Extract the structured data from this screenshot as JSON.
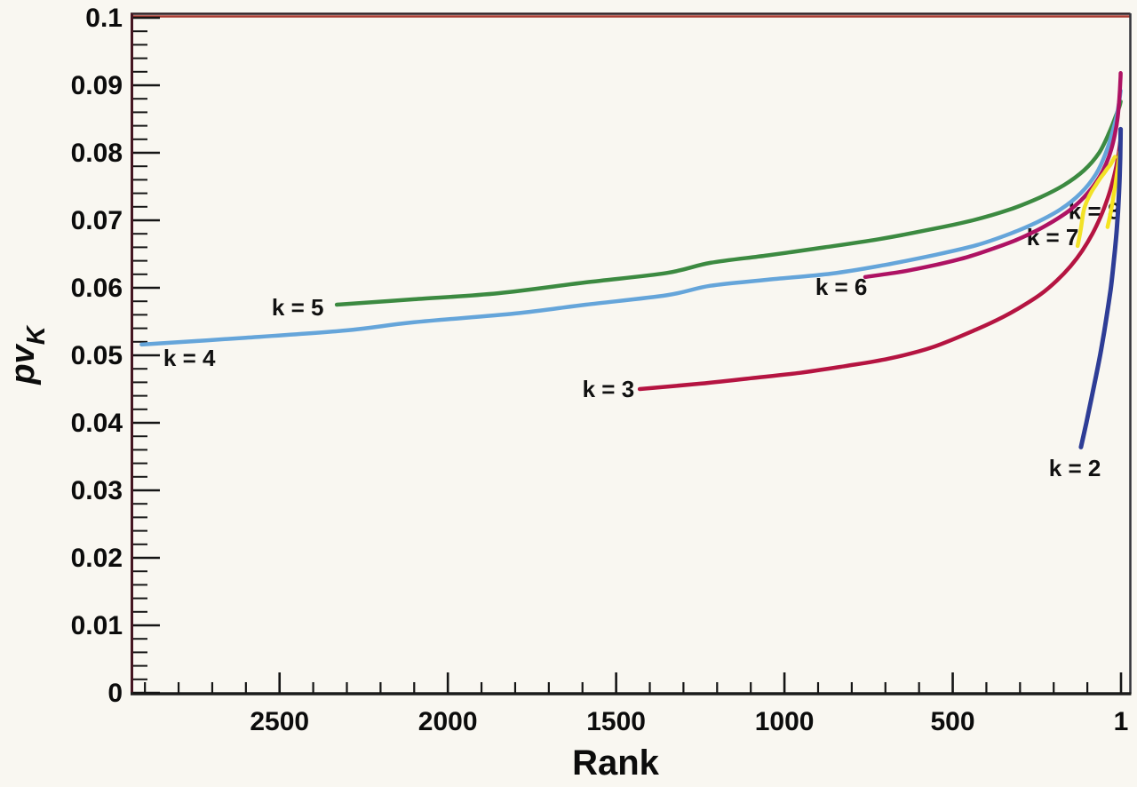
{
  "figure": {
    "background_color": "#f9f7f1",
    "frame": {
      "top_line_color": "#a83a31",
      "top_edge_color": "#2f1f24",
      "left_axis_color": "#451521",
      "right_border_color": "#33333a",
      "bottom_axis_color": "#1b1b1b",
      "tick_color": "#151515"
    }
  },
  "chart_data": {
    "type": "line",
    "title": "",
    "xlabel": "Rank",
    "ylabel": "pv_K",
    "ylabel_main": "pv",
    "ylabel_sub": "K",
    "grid": false,
    "legend": "inline curve labels",
    "x_axis": {
      "label": "Rank",
      "min": 0,
      "max": 2940,
      "direction": "reversed (high rank at left, 1 at right)",
      "major_ticks": [
        2500,
        2000,
        1500,
        1000,
        500,
        0
      ],
      "major_tick_labels": [
        "2500",
        "2000",
        "1500",
        "1000",
        "500",
        "1"
      ],
      "minor_tick_step": 100
    },
    "y_axis": {
      "label": "pv_K",
      "min": 0,
      "max": 0.1,
      "major_tick_step": 0.01,
      "minor_tick_step": 0.002,
      "major_tick_labels": [
        "0",
        "0.01",
        "0.02",
        "0.03",
        "0.04",
        "0.05",
        "0.06",
        "0.07",
        "0.08",
        "0.09",
        "0.1"
      ]
    },
    "series": [
      {
        "name": "k = 5",
        "color": "#3c8a41",
        "points": [
          [
            2330,
            0.0575
          ],
          [
            2100,
            0.0583
          ],
          [
            1850,
            0.0592
          ],
          [
            1590,
            0.0608
          ],
          [
            1350,
            0.0622
          ],
          [
            1220,
            0.0637
          ],
          [
            1050,
            0.0648
          ],
          [
            880,
            0.066
          ],
          [
            720,
            0.0672
          ],
          [
            570,
            0.0686
          ],
          [
            440,
            0.07
          ],
          [
            330,
            0.0716
          ],
          [
            240,
            0.0734
          ],
          [
            170,
            0.0752
          ],
          [
            110,
            0.0774
          ],
          [
            65,
            0.08
          ],
          [
            35,
            0.083
          ],
          [
            15,
            0.0855
          ],
          [
            5,
            0.0868
          ],
          [
            1,
            0.0876
          ]
        ]
      },
      {
        "name": "k = 4",
        "color": "#65a5da",
        "points": [
          [
            2910,
            0.0516
          ],
          [
            2600,
            0.0526
          ],
          [
            2300,
            0.0537
          ],
          [
            2100,
            0.0549
          ],
          [
            1800,
            0.0562
          ],
          [
            1590,
            0.0575
          ],
          [
            1350,
            0.0589
          ],
          [
            1220,
            0.0603
          ],
          [
            1050,
            0.0612
          ],
          [
            860,
            0.0621
          ],
          [
            700,
            0.0634
          ],
          [
            550,
            0.0649
          ],
          [
            430,
            0.0663
          ],
          [
            330,
            0.068
          ],
          [
            250,
            0.0697
          ],
          [
            180,
            0.0716
          ],
          [
            120,
            0.074
          ],
          [
            75,
            0.0768
          ],
          [
            45,
            0.08
          ],
          [
            20,
            0.084
          ],
          [
            8,
            0.0868
          ],
          [
            1,
            0.0892
          ]
        ]
      },
      {
        "name": "k = 6",
        "color": "#ae1263",
        "points": [
          [
            760,
            0.0616
          ],
          [
            650,
            0.0624
          ],
          [
            550,
            0.0634
          ],
          [
            460,
            0.0645
          ],
          [
            380,
            0.0658
          ],
          [
            310,
            0.0671
          ],
          [
            250,
            0.0685
          ],
          [
            200,
            0.0699
          ],
          [
            155,
            0.0714
          ],
          [
            118,
            0.073
          ],
          [
            88,
            0.0747
          ],
          [
            63,
            0.0765
          ],
          [
            44,
            0.0784
          ],
          [
            29,
            0.0805
          ],
          [
            18,
            0.0828
          ],
          [
            10,
            0.0852
          ],
          [
            5,
            0.088
          ],
          [
            2,
            0.0905
          ],
          [
            1,
            0.0918
          ]
        ]
      },
      {
        "name": "k = 3",
        "color": "#b51441",
        "points": [
          [
            1430,
            0.045
          ],
          [
            1250,
            0.0458
          ],
          [
            1100,
            0.0466
          ],
          [
            955,
            0.0474
          ],
          [
            820,
            0.0484
          ],
          [
            691,
            0.0495
          ],
          [
            560,
            0.0512
          ],
          [
            427,
            0.0539
          ],
          [
            350,
            0.0557
          ],
          [
            296,
            0.0572
          ],
          [
            240,
            0.059
          ],
          [
            190,
            0.0611
          ],
          [
            150,
            0.0632
          ],
          [
            115,
            0.0655
          ],
          [
            85,
            0.068
          ],
          [
            60,
            0.0706
          ],
          [
            40,
            0.0732
          ],
          [
            25,
            0.0757
          ],
          [
            14,
            0.078
          ],
          [
            6,
            0.0802
          ],
          [
            1,
            0.0822
          ]
        ]
      },
      {
        "name": "k = 7",
        "color": "#f2e227",
        "points": [
          [
            129,
            0.0662
          ],
          [
            120,
            0.0685
          ],
          [
            111,
            0.0714
          ],
          [
            100,
            0.073
          ],
          [
            88,
            0.0742
          ],
          [
            75,
            0.0752
          ],
          [
            62,
            0.0762
          ],
          [
            50,
            0.077
          ],
          [
            40,
            0.0777
          ],
          [
            32,
            0.0782
          ],
          [
            25,
            0.0788
          ],
          [
            18,
            0.0794
          ]
        ]
      },
      {
        "name": "k = 8",
        "color": "#f6e41e",
        "points": [
          [
            40,
            0.069
          ],
          [
            33,
            0.0706
          ],
          [
            27,
            0.0722
          ],
          [
            22,
            0.0737
          ],
          [
            17,
            0.0752
          ],
          [
            13,
            0.0766
          ],
          [
            9,
            0.078
          ],
          [
            6,
            0.0792
          ],
          [
            4,
            0.0801
          ]
        ]
      },
      {
        "name": "k = 2",
        "color": "#2e3d96",
        "points": [
          [
            119,
            0.0364
          ],
          [
            103,
            0.04
          ],
          [
            88,
            0.0436
          ],
          [
            74,
            0.047
          ],
          [
            61,
            0.0503
          ],
          [
            50,
            0.0535
          ],
          [
            40,
            0.0566
          ],
          [
            31,
            0.0597
          ],
          [
            24,
            0.0627
          ],
          [
            18,
            0.0656
          ],
          [
            13,
            0.0684
          ],
          [
            9,
            0.0712
          ],
          [
            6,
            0.074
          ],
          [
            4,
            0.0766
          ],
          [
            2.5,
            0.0792
          ],
          [
            1.5,
            0.0815
          ],
          [
            1,
            0.0835
          ]
        ]
      }
    ],
    "annotations": [
      {
        "text": "k = 5",
        "rank": 2446,
        "pv": 0.0571
      },
      {
        "text": "k = 4",
        "rank": 2768,
        "pv": 0.0496
      },
      {
        "text": "k = 3",
        "rank": 1523,
        "pv": 0.045
      },
      {
        "text": "k = 6",
        "rank": 831,
        "pv": 0.0601
      },
      {
        "text": "k = 7",
        "rank": 203,
        "pv": 0.0675
      },
      {
        "text": "k = 8",
        "rank": 79,
        "pv": 0.0714
      },
      {
        "text": "k = 2",
        "rank": 137,
        "pv": 0.0333
      }
    ]
  }
}
